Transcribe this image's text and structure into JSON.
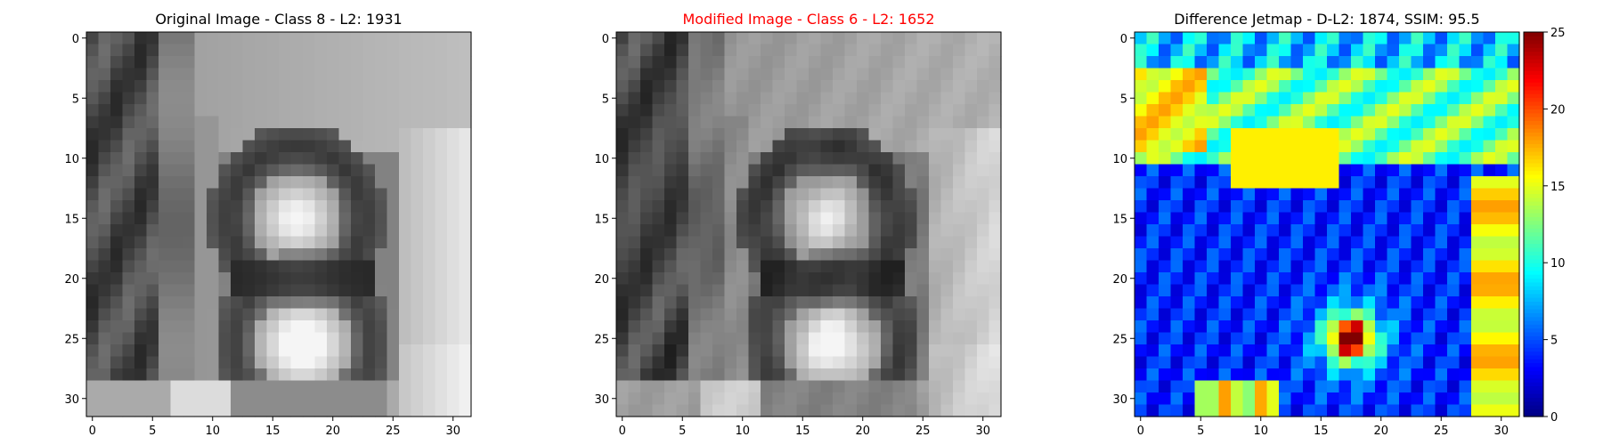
{
  "chart_data": [
    {
      "type": "heatmap",
      "title": "Original Image - Class 8 - L2: 1931",
      "title_color": "#000000",
      "colormap": "gray",
      "grid": false,
      "x_ticks": [
        0,
        5,
        10,
        15,
        20,
        25,
        30
      ],
      "y_ticks": [
        0,
        5,
        10,
        15,
        20,
        25,
        30
      ],
      "xlim": [
        -0.5,
        31.5
      ],
      "ylim": [
        31.5,
        -0.5
      ]
    },
    {
      "type": "heatmap",
      "title": "Modified Image - Class 6 - L2: 1652",
      "title_color": "#ff0000",
      "colormap": "gray",
      "grid": false,
      "x_ticks": [
        0,
        5,
        10,
        15,
        20,
        25,
        30
      ],
      "y_ticks": [
        0,
        5,
        10,
        15,
        20,
        25,
        30
      ],
      "xlim": [
        -0.5,
        31.5
      ],
      "ylim": [
        31.5,
        -0.5
      ]
    },
    {
      "type": "heatmap",
      "title": "Difference Jetmap - D-L2: 1874, SSIM: 95.5",
      "title_color": "#000000",
      "colormap": "jet",
      "grid": false,
      "x_ticks": [
        0,
        5,
        10,
        15,
        20,
        25,
        30
      ],
      "y_ticks": [
        0,
        5,
        10,
        15,
        20,
        25,
        30
      ],
      "xlim": [
        -0.5,
        31.5
      ],
      "ylim": [
        31.5,
        -0.5
      ],
      "colorbar": {
        "range": [
          0,
          25
        ],
        "ticks": [
          0,
          5,
          10,
          15,
          20,
          25
        ]
      }
    }
  ]
}
